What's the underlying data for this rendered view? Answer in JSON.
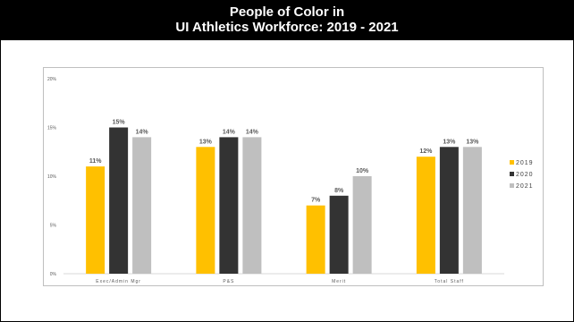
{
  "header": {
    "title_line1": "People of Color in",
    "title_line2": "UI Athletics Workforce:  2019 - 2021"
  },
  "colors": {
    "2019": "#FFC000",
    "2020": "#333333",
    "2021": "#BFBFBF"
  },
  "chart_data": {
    "type": "bar",
    "title": "",
    "xlabel": "",
    "ylabel": "",
    "ylim": [
      0,
      20
    ],
    "yticks": [
      "0%",
      "5%",
      "10%",
      "15%",
      "20%"
    ],
    "categories": [
      "Exec/Admin Mgr",
      "P&S",
      "Merit",
      "Total Staff"
    ],
    "legend_position": "right",
    "grid": false,
    "series": [
      {
        "name": "2019",
        "values": [
          11,
          13,
          7,
          12
        ],
        "labels": [
          "11%",
          "13%",
          "7%",
          "12%"
        ],
        "color": "#FFC000"
      },
      {
        "name": "2020",
        "values": [
          15,
          14,
          8,
          13
        ],
        "labels": [
          "15%",
          "14%",
          "8%",
          "13%"
        ],
        "color": "#333333"
      },
      {
        "name": "2021",
        "values": [
          14,
          14,
          10,
          13
        ],
        "labels": [
          "14%",
          "14%",
          "10%",
          "13%"
        ],
        "color": "#BFBFBF"
      }
    ]
  }
}
